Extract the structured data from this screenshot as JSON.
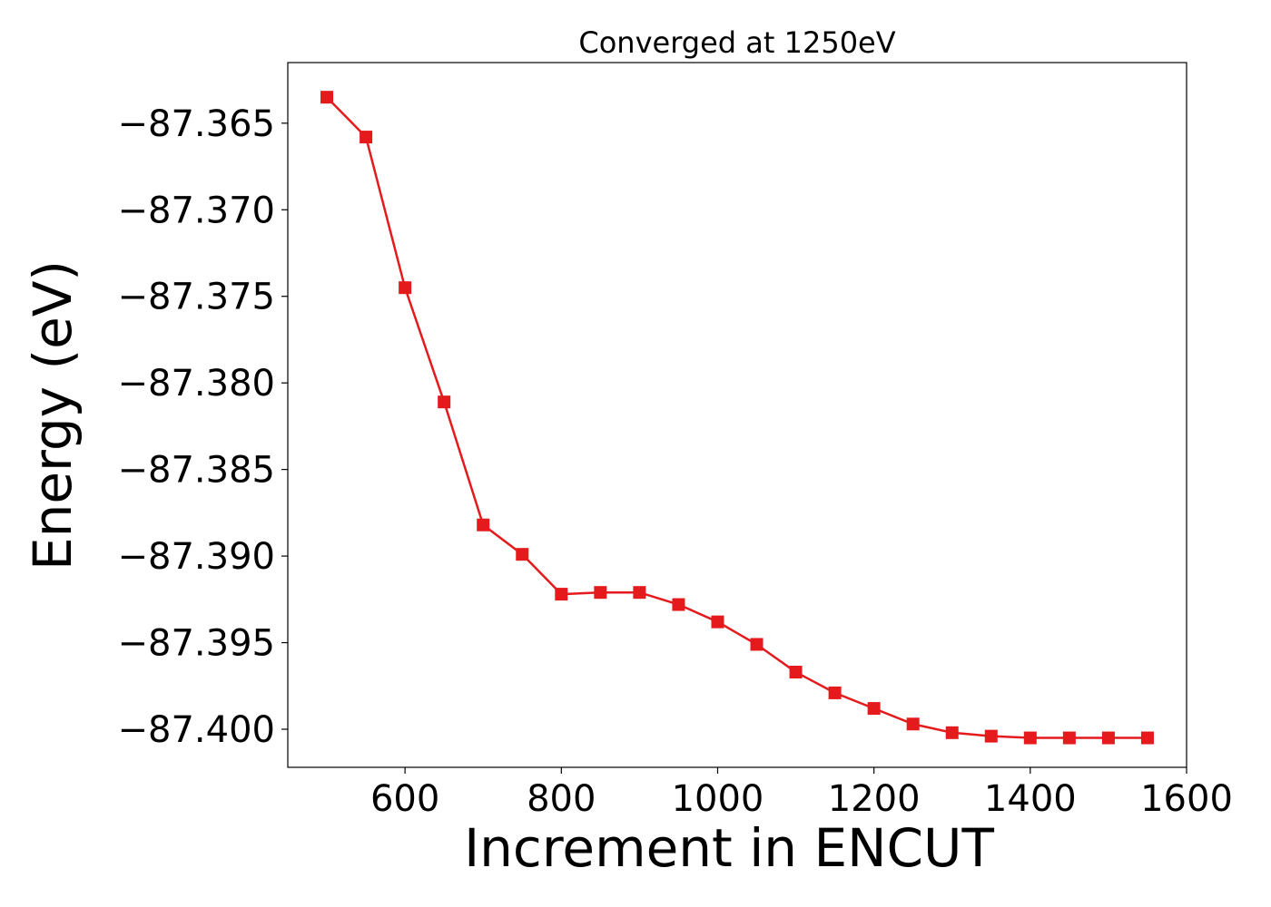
{
  "chart_data": {
    "type": "line",
    "title": "Converged at 1250eV",
    "xlabel": "Increment in ENCUT",
    "ylabel": "Energy (eV)",
    "xlim": [
      450,
      1600
    ],
    "ylim": [
      -87.4022,
      -87.3615
    ],
    "xticks": [
      600,
      800,
      1000,
      1200,
      1400,
      1600
    ],
    "xtick_labels": [
      "600",
      "800",
      "1000",
      "1200",
      "1400",
      "1600"
    ],
    "yticks": [
      -87.365,
      -87.37,
      -87.375,
      -87.38,
      -87.385,
      -87.39,
      -87.395,
      -87.4
    ],
    "ytick_labels": [
      "−87.365",
      "−87.370",
      "−87.375",
      "−87.380",
      "−87.385",
      "−87.390",
      "−87.395",
      "−87.400"
    ],
    "grid": false,
    "series": [
      {
        "color": "#e41a1c",
        "marker": "square",
        "x": [
          500,
          550,
          600,
          650,
          700,
          750,
          800,
          850,
          900,
          950,
          1000,
          1050,
          1100,
          1150,
          1200,
          1250,
          1300,
          1350,
          1400,
          1450,
          1500,
          1550
        ],
        "y": [
          -87.3635,
          -87.3658,
          -87.3745,
          -87.3811,
          -87.3882,
          -87.3899,
          -87.3922,
          -87.3921,
          -87.3921,
          -87.3928,
          -87.3938,
          -87.3951,
          -87.3967,
          -87.3979,
          -87.3988,
          -87.3997,
          -87.4002,
          -87.4004,
          -87.4005,
          -87.4005,
          -87.4005,
          -87.4005
        ]
      }
    ]
  }
}
